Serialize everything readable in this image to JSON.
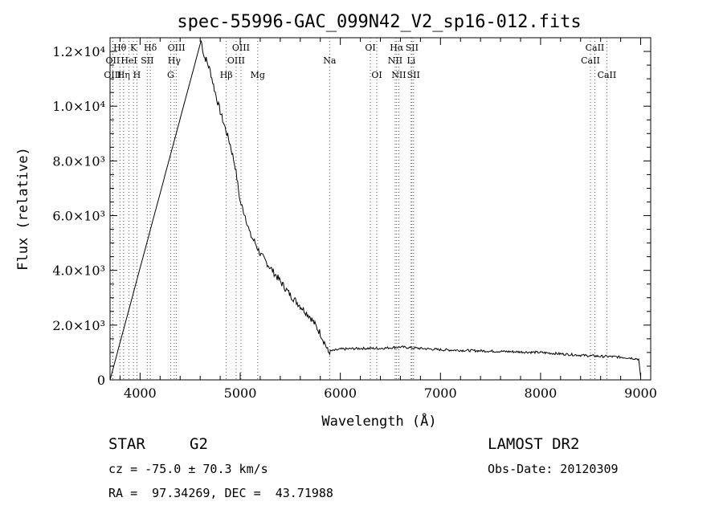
{
  "chart_data": {
    "type": "line",
    "title": "spec-55996-GAC_099N42_V2_sp16-012.fits",
    "xlabel": "Wavelength (Å)",
    "ylabel": "Flux (relative)",
    "xlim": [
      3700,
      9100
    ],
    "ylim": [
      0,
      12500
    ],
    "x_ticks": [
      {
        "value": 4000,
        "label": "4000"
      },
      {
        "value": 5000,
        "label": "5000"
      },
      {
        "value": 6000,
        "label": "6000"
      },
      {
        "value": 7000,
        "label": "7000"
      },
      {
        "value": 8000,
        "label": "8000"
      },
      {
        "value": 9000,
        "label": "9000"
      }
    ],
    "y_ticks": [
      {
        "value": 0,
        "label": "0"
      },
      {
        "value": 2000,
        "label": "2.0×10³"
      },
      {
        "value": 4000,
        "label": "4.0×10³"
      },
      {
        "value": 6000,
        "label": "6.0×10³"
      },
      {
        "value": 8000,
        "label": "8.0×10³"
      },
      {
        "value": 10000,
        "label": "1.0×10⁴"
      },
      {
        "value": 12000,
        "label": "1.2×10⁴"
      }
    ],
    "grid": false,
    "series": [
      {
        "name": "",
        "x": [
          3700,
          4610,
          4640,
          4660,
          4700,
          4750,
          4800,
          4850,
          4900,
          4950,
          5000,
          5050,
          5100,
          5150,
          5200,
          5300,
          5400,
          5500,
          5600,
          5700,
          5800,
          5850,
          5880,
          5900,
          5950,
          6000,
          6200,
          6400,
          6600,
          6800,
          7000,
          7200,
          7500,
          7800,
          8000,
          8200,
          8400,
          8500,
          8600,
          8700,
          8800,
          8900,
          8980,
          9000
        ],
        "y": [
          0,
          12400,
          11800,
          11700,
          11300,
          10500,
          9800,
          9200,
          8600,
          7800,
          6500,
          6000,
          5300,
          5000,
          4600,
          4100,
          3600,
          3100,
          2700,
          2300,
          1700,
          1300,
          1000,
          1050,
          1080,
          1120,
          1150,
          1150,
          1200,
          1150,
          1100,
          1080,
          1050,
          1020,
          1000,
          950,
          900,
          880,
          860,
          850,
          830,
          800,
          760,
          100
        ]
      }
    ],
    "lines": [
      {
        "label": "Hθ",
        "wavelength": 3798,
        "row": 1
      },
      {
        "label": "OII",
        "wavelength": 3727,
        "row": 2
      },
      {
        "label": "OIII",
        "wavelength": 3727,
        "row": 3
      },
      {
        "label": "Hη",
        "wavelength": 3835,
        "row": 3
      },
      {
        "label": "HeI",
        "wavelength": 3889,
        "row": 2
      },
      {
        "label": "K",
        "wavelength": 3934,
        "row": 1
      },
      {
        "label": "H",
        "wavelength": 3968,
        "row": 3
      },
      {
        "label": "SII",
        "wavelength": 4072,
        "row": 2
      },
      {
        "label": "Hδ",
        "wavelength": 4102,
        "row": 1
      },
      {
        "label": "OIII",
        "wavelength": 4363,
        "row": 1
      },
      {
        "label": "Hγ",
        "wavelength": 4341,
        "row": 2
      },
      {
        "label": "G",
        "wavelength": 4305,
        "row": 3
      },
      {
        "label": "Hβ",
        "wavelength": 4861,
        "row": 3
      },
      {
        "label": "OIII",
        "wavelength": 5007,
        "row": 1
      },
      {
        "label": "OIII",
        "wavelength": 4959,
        "row": 2
      },
      {
        "label": "Mg",
        "wavelength": 5175,
        "row": 3
      },
      {
        "label": "Na",
        "wavelength": 5893,
        "row": 2
      },
      {
        "label": "OI",
        "wavelength": 6300,
        "row": 1
      },
      {
        "label": "OI",
        "wavelength": 6364,
        "row": 3
      },
      {
        "label": "Hα",
        "wavelength": 6563,
        "row": 1
      },
      {
        "label": "SII",
        "wavelength": 6716,
        "row": 1
      },
      {
        "label": "NII",
        "wavelength": 6548,
        "row": 2
      },
      {
        "label": "Li",
        "wavelength": 6708,
        "row": 2
      },
      {
        "label": "NII",
        "wavelength": 6584,
        "row": 3
      },
      {
        "label": "SII",
        "wavelength": 6731,
        "row": 3
      },
      {
        "label": "CaII",
        "wavelength": 8542,
        "row": 1
      },
      {
        "label": "CaII",
        "wavelength": 8498,
        "row": 2
      },
      {
        "label": "CaII",
        "wavelength": 8662,
        "row": 3
      }
    ]
  },
  "info": {
    "class_label": "STAR",
    "subclass": "G2",
    "cz": "cz = -75.0 ± 70.3 km/s",
    "coords": "RA =  97.34269, DEC =  43.71988",
    "survey": "LAMOST DR2",
    "obs_date": "Obs-Date: 20120309"
  }
}
